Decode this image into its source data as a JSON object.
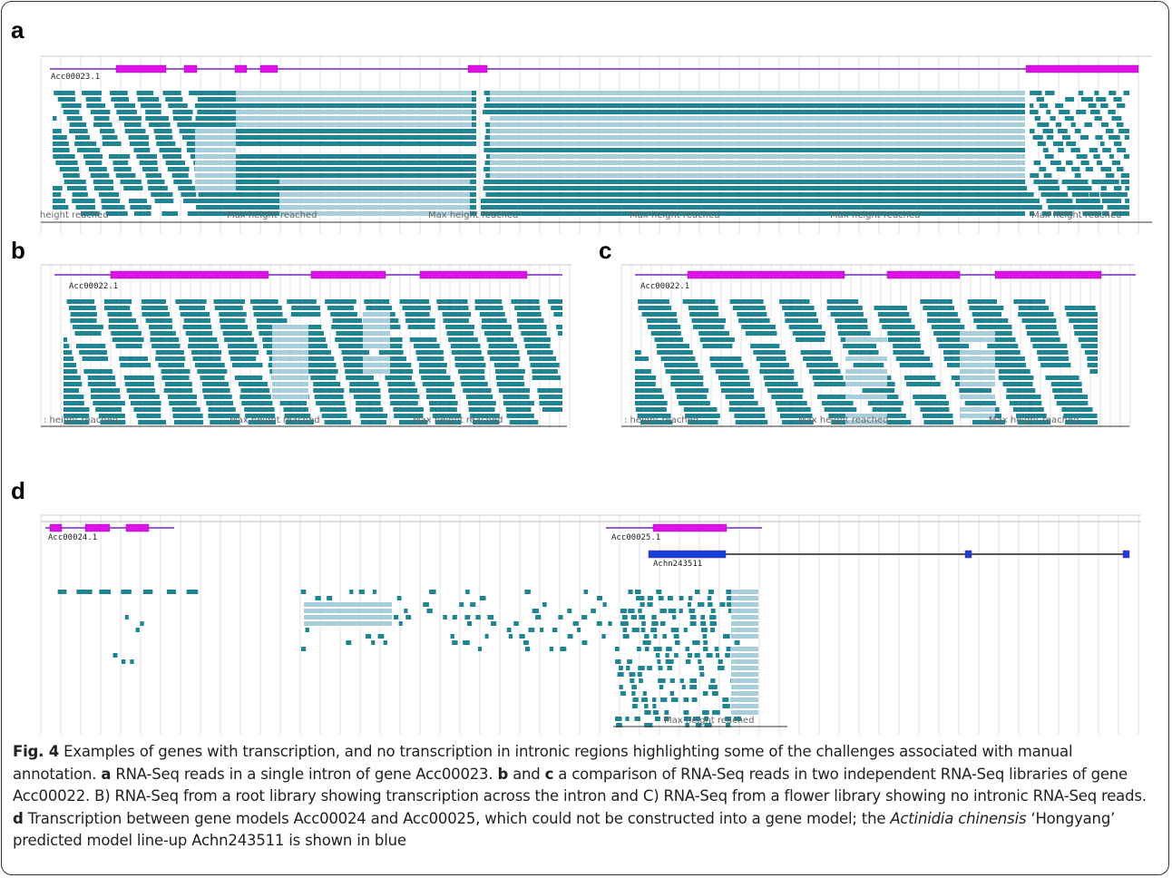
{
  "panels": [
    {
      "label": "a",
      "genes": [
        "Acc00023.1"
      ],
      "max_height_labels": [
        "height reached",
        "Max height reached",
        "Max height reached",
        "Max height reached",
        "Max height reached",
        "Max height reached"
      ]
    },
    {
      "label": "b",
      "genes": [
        "Acc00022.1"
      ],
      "max_height_labels": [
        ": height reached",
        "Max height reached",
        "Max height reached"
      ]
    },
    {
      "label": "c",
      "genes": [
        "Acc00022.1"
      ],
      "max_height_labels": [
        ": height reached",
        "Max height reached",
        "Max height reached"
      ]
    },
    {
      "label": "d",
      "genes": [
        "Acc00024.1",
        "Acc00025.1",
        "Achn243511"
      ],
      "max_height_labels": [
        "Max height reached"
      ]
    }
  ],
  "caption": [
    "Fig. 4",
    " Examples of genes with transcription, and no transcription in intronic regions highlighting some of the challenges associated with manual annotation. ",
    "a",
    " RNA-Seq reads in a single intron of gene Acc00023. ",
    "b",
    " and ",
    "c",
    " a comparison of RNA-Seq reads in two independent RNA-Seq libraries of gene Acc00022. B) RNA-Seq from a root library showing transcription across the intron and C) RNA-Seq from a flower library showing no intronic RNA-Seq reads. ",
    "d",
    " Transcription between gene models Acc00024 and Acc00025, which could not be constructed into a gene model; the ",
    "Actinidia chinensis",
    " ‘Hongyang’ predicted model line-up Achn243511 is shown in blue"
  ]
}
